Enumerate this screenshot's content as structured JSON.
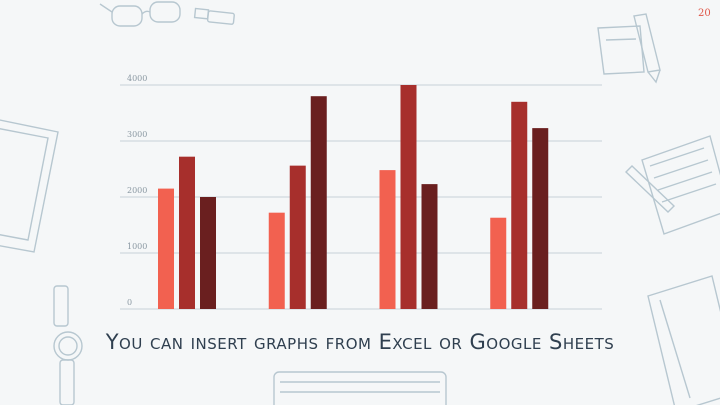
{
  "page_number": "20",
  "caption": "You can insert graphs from Excel or Google Sheets",
  "colors": {
    "series_1": "#f26150",
    "series_2": "#a72f2c",
    "series_3": "#6a1f1f",
    "grid": "#c7d1d8",
    "caption": "#2f3f4f",
    "page_number": "#e0584a"
  },
  "decorations": [
    "glasses-icon",
    "usb-stick-icon",
    "sticky-note-icon",
    "pencil-icon",
    "tablet-icon",
    "notebook-icon",
    "pen-icon",
    "wristwatch-icon",
    "keyboard-icon",
    "journal-icon"
  ],
  "chart_data": {
    "type": "bar",
    "categories": [
      "",
      "",
      "",
      ""
    ],
    "series": [
      {
        "values": [
          2150,
          1720,
          2480,
          1630
        ]
      },
      {
        "values": [
          2720,
          2560,
          4000,
          3700
        ]
      },
      {
        "values": [
          2000,
          3800,
          2230,
          3230
        ]
      }
    ],
    "ylim": [
      0,
      4000
    ],
    "yticks": [
      "0",
      "1000",
      "2000",
      "3000",
      "4000"
    ],
    "grid": true,
    "legend": "none",
    "xlabel": "",
    "ylabel": ""
  }
}
